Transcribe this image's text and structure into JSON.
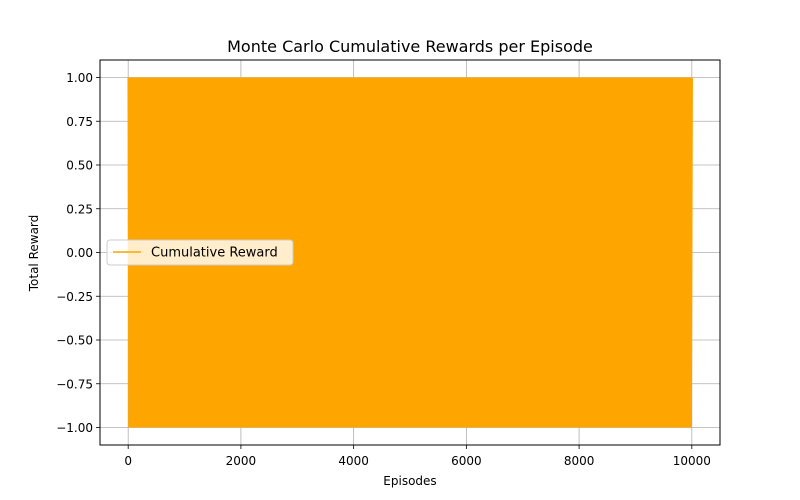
{
  "chart_data": {
    "type": "line",
    "title": "Monte Carlo Cumulative Rewards per Episode",
    "xlabel": "Episodes",
    "ylabel": "Total Reward",
    "xlim": [
      -500,
      10500
    ],
    "ylim": [
      -1.1,
      1.1
    ],
    "grid": true,
    "legend_position": "center-left",
    "x_ticks": [
      0,
      2000,
      4000,
      6000,
      8000,
      10000
    ],
    "x_tick_labels": [
      "0",
      "2000",
      "4000",
      "6000",
      "8000",
      "10000"
    ],
    "y_ticks": [
      -1.0,
      -0.75,
      -0.5,
      -0.25,
      0.0,
      0.25,
      0.5,
      0.75,
      1.0
    ],
    "y_tick_labels": [
      "−1.00",
      "−0.75",
      "−0.50",
      "−0.25",
      "0.00",
      "0.25",
      "0.50",
      "0.75",
      "1.00"
    ],
    "series": [
      {
        "name": "Cumulative Reward",
        "color": "#FFA500",
        "episodes": 10000,
        "value_range": [
          -1.0,
          1.0
        ],
        "x_range": [
          0,
          10000
        ]
      }
    ]
  }
}
